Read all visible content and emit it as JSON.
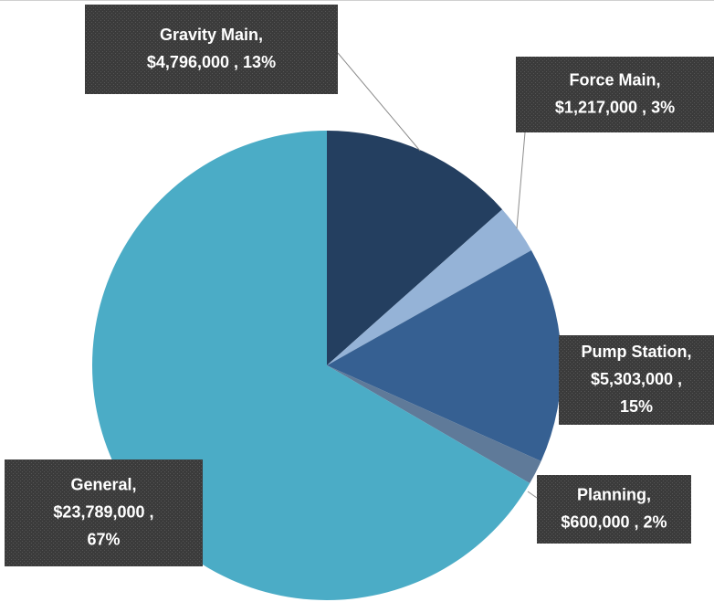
{
  "chart_data": {
    "type": "pie",
    "categories": [
      "Gravity Main",
      "Force Main",
      "Pump Station",
      "Planning",
      "General"
    ],
    "values": [
      4796000,
      1217000,
      5303000,
      600000,
      23789000
    ],
    "value_labels": [
      "$4,796,000",
      "$1,217,000",
      "$5,303,000",
      "$600,000",
      "$23,789,000"
    ],
    "percents": [
      13,
      3,
      15,
      2,
      67
    ],
    "percent_labels": [
      "13%",
      "3%",
      "15%",
      "2%",
      "67%"
    ],
    "label_separator": ",",
    "colors": [
      "#243f60",
      "#95b3d7",
      "#366092",
      "#5f7a99",
      "#4bacc6"
    ]
  }
}
